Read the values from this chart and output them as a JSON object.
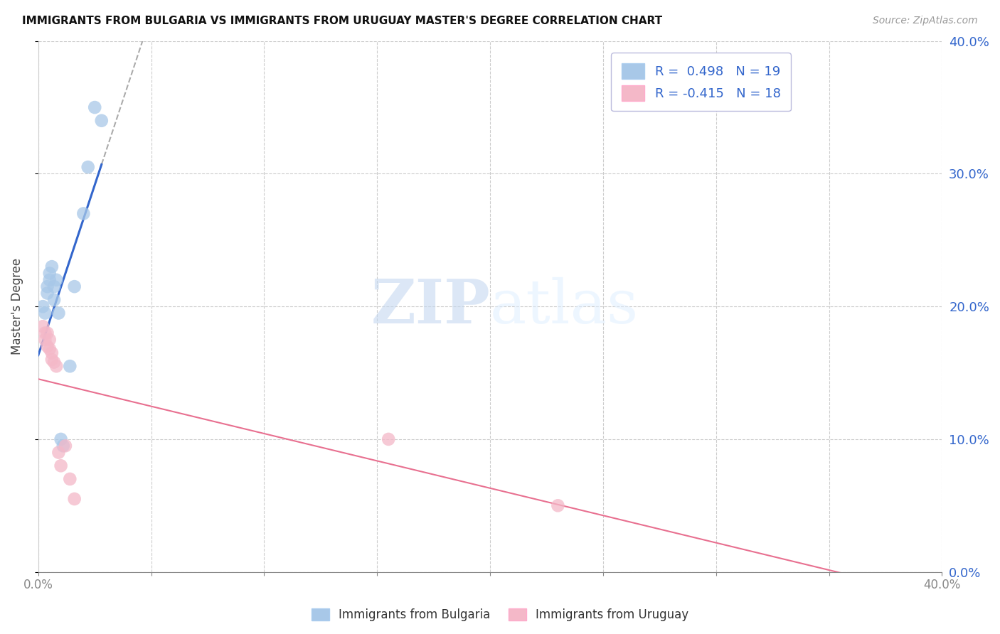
{
  "title": "IMMIGRANTS FROM BULGARIA VS IMMIGRANTS FROM URUGUAY MASTER'S DEGREE CORRELATION CHART",
  "source": "Source: ZipAtlas.com",
  "ylabel": "Master's Degree",
  "xlim": [
    0.0,
    0.4
  ],
  "ylim": [
    0.0,
    0.4
  ],
  "bulgaria_R": 0.498,
  "bulgaria_N": 19,
  "uruguay_R": -0.415,
  "uruguay_N": 18,
  "bulgaria_color": "#a8c8e8",
  "uruguay_color": "#f4b8c8",
  "bulgaria_line_color": "#3366cc",
  "uruguay_line_color": "#e87090",
  "grid_color": "#cccccc",
  "background_color": "#ffffff",
  "bulgaria_x": [
    0.002,
    0.003,
    0.004,
    0.004,
    0.005,
    0.005,
    0.006,
    0.007,
    0.007,
    0.008,
    0.009,
    0.01,
    0.011,
    0.014,
    0.016,
    0.02,
    0.022,
    0.025,
    0.028
  ],
  "bulgaria_y": [
    0.2,
    0.195,
    0.215,
    0.21,
    0.225,
    0.22,
    0.23,
    0.215,
    0.205,
    0.22,
    0.195,
    0.1,
    0.095,
    0.155,
    0.215,
    0.27,
    0.305,
    0.35,
    0.34
  ],
  "uruguay_x": [
    0.002,
    0.003,
    0.003,
    0.004,
    0.004,
    0.005,
    0.005,
    0.006,
    0.006,
    0.007,
    0.008,
    0.009,
    0.01,
    0.012,
    0.014,
    0.016,
    0.155,
    0.23
  ],
  "uruguay_y": [
    0.185,
    0.18,
    0.175,
    0.18,
    0.17,
    0.175,
    0.168,
    0.165,
    0.16,
    0.158,
    0.155,
    0.09,
    0.08,
    0.095,
    0.07,
    0.055,
    0.1,
    0.05
  ]
}
